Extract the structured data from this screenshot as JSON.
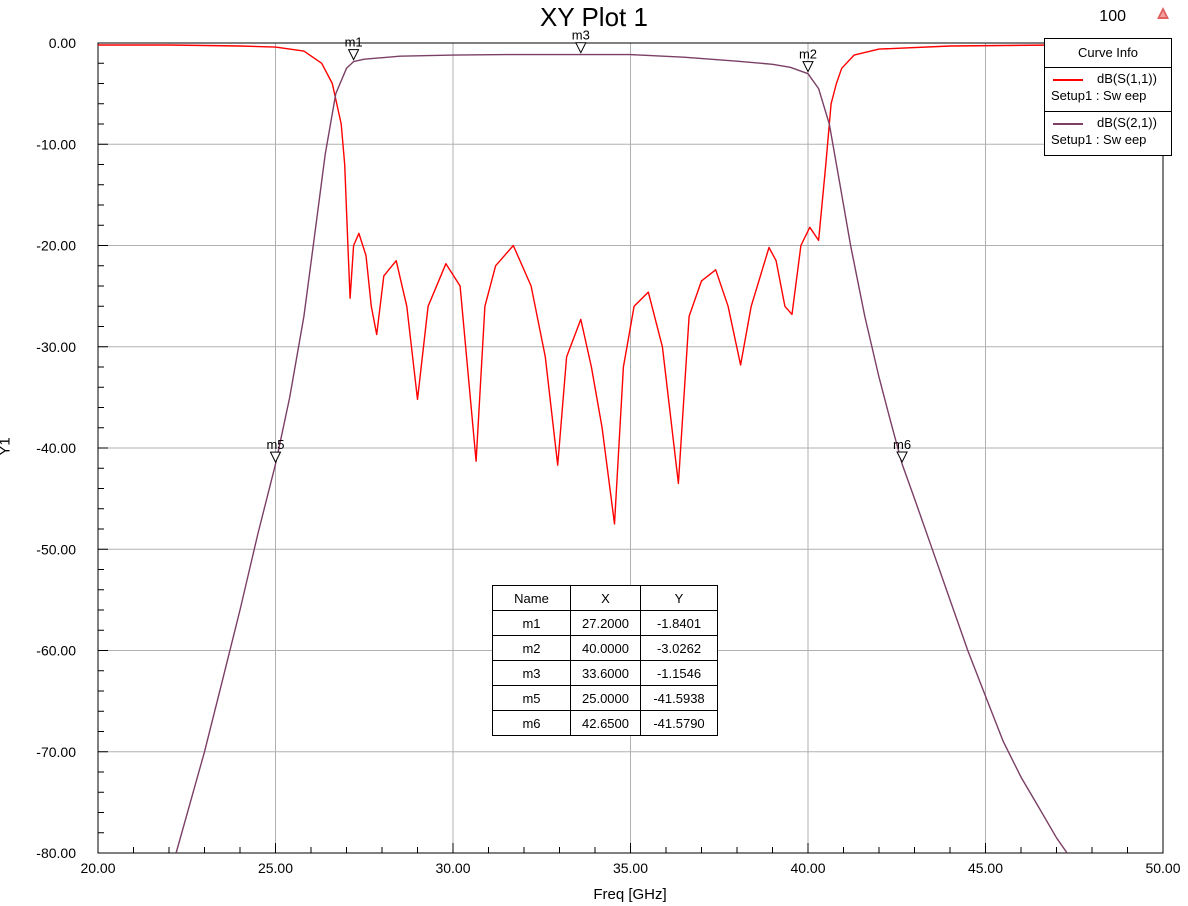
{
  "header": {
    "title": "XY Plot 1",
    "zoom": "100"
  },
  "colors": {
    "s11": "#ff0000",
    "s21": "#7b3f66",
    "grid": "#b0b0b0",
    "background": "#ffffff"
  },
  "legend": {
    "header": "Curve Info",
    "items": [
      {
        "name": "dB(S(1,1))",
        "setup": "Setup1 : Sw eep",
        "color": "#ff0000"
      },
      {
        "name": "dB(S(2,1))",
        "setup": "Setup1 : Sw eep",
        "color": "#7b3f66"
      }
    ]
  },
  "marker_table": {
    "columns": [
      "Name",
      "X",
      "Y"
    ],
    "rows": [
      [
        "m1",
        "27.2000",
        "-1.8401"
      ],
      [
        "m2",
        "40.0000",
        "-3.0262"
      ],
      [
        "m3",
        "33.6000",
        "-1.1546"
      ],
      [
        "m5",
        "25.0000",
        "-41.5938"
      ],
      [
        "m6",
        "42.6500",
        "-41.5790"
      ]
    ]
  },
  "chart_data": {
    "type": "line",
    "title": "XY Plot 1",
    "xlabel": "Freq [GHz]",
    "ylabel": "Y1",
    "xlim": [
      20,
      50
    ],
    "ylim": [
      -80,
      0
    ],
    "grid": true,
    "legend_position": "top-right",
    "x_ticks": [
      "20.00",
      "25.00",
      "30.00",
      "35.00",
      "40.00",
      "45.00",
      "50.00"
    ],
    "y_ticks": [
      "0.00",
      "-10.00",
      "-20.00",
      "-30.00",
      "-40.00",
      "-50.00",
      "-60.00",
      "-70.00",
      "-80.00"
    ],
    "markers": [
      {
        "name": "m1",
        "x": 27.2,
        "y": -1.8401
      },
      {
        "name": "m2",
        "x": 40.0,
        "y": -3.0262
      },
      {
        "name": "m3",
        "x": 33.6,
        "y": -1.1546
      },
      {
        "name": "m5",
        "x": 25.0,
        "y": -41.5938
      },
      {
        "name": "m6",
        "x": 42.65,
        "y": -41.579
      }
    ],
    "series": [
      {
        "name": "dB(S(1,1))",
        "color": "#ff0000",
        "x": [
          20.0,
          22.0,
          24.0,
          25.0,
          25.8,
          26.3,
          26.6,
          26.85,
          26.95,
          27.05,
          27.1,
          27.2,
          27.35,
          27.55,
          27.7,
          27.85,
          28.05,
          28.4,
          28.7,
          29.0,
          29.3,
          29.8,
          30.2,
          30.65,
          30.9,
          31.2,
          31.7,
          32.2,
          32.6,
          32.95,
          33.2,
          33.6,
          33.9,
          34.2,
          34.55,
          34.8,
          35.1,
          35.5,
          35.9,
          36.35,
          36.65,
          37.0,
          37.4,
          37.75,
          38.1,
          38.4,
          38.9,
          39.1,
          39.35,
          39.55,
          39.8,
          40.05,
          40.3,
          40.5,
          40.65,
          40.8,
          40.95,
          41.3,
          42.0,
          44.0,
          47.0,
          50.0
        ],
        "y": [
          -0.2,
          -0.2,
          -0.3,
          -0.4,
          -0.8,
          -2.0,
          -4.0,
          -8.0,
          -12.0,
          -21.0,
          -25.2,
          -20.0,
          -18.8,
          -21.0,
          -26.0,
          -28.8,
          -23.0,
          -21.5,
          -26.0,
          -35.2,
          -26.0,
          -21.8,
          -24.0,
          -41.3,
          -26.0,
          -22.0,
          -20.0,
          -24.0,
          -31.0,
          -41.7,
          -31.0,
          -27.3,
          -32.0,
          -38.0,
          -47.5,
          -32.0,
          -26.0,
          -24.6,
          -30.0,
          -43.5,
          -27.0,
          -23.5,
          -22.4,
          -26.0,
          -31.8,
          -26.0,
          -20.2,
          -21.5,
          -26.0,
          -26.8,
          -20.0,
          -18.2,
          -19.5,
          -12.0,
          -6.0,
          -4.0,
          -2.5,
          -1.2,
          -0.6,
          -0.3,
          -0.2,
          -0.2
        ]
      },
      {
        "name": "dB(S(2,1))",
        "color": "#7b3f66",
        "x": [
          22.2,
          22.6,
          23.0,
          23.5,
          24.0,
          24.5,
          25.0,
          25.4,
          25.8,
          26.1,
          26.4,
          26.7,
          27.0,
          27.2,
          27.5,
          28.5,
          30.0,
          31.5,
          33.6,
          35.0,
          36.5,
          38.0,
          39.0,
          39.5,
          40.0,
          40.3,
          40.6,
          40.9,
          41.2,
          41.6,
          42.0,
          42.3,
          42.65,
          43.0,
          43.5,
          44.0,
          44.5,
          45.0,
          45.5,
          46.0,
          46.5,
          47.0,
          47.3
        ],
        "y": [
          -80.0,
          -75.0,
          -70.0,
          -63.0,
          -56.0,
          -48.5,
          -41.6,
          -35.0,
          -27.0,
          -19.0,
          -11.0,
          -5.0,
          -2.5,
          -1.84,
          -1.6,
          -1.3,
          -1.2,
          -1.15,
          -1.15,
          -1.15,
          -1.4,
          -1.8,
          -2.1,
          -2.4,
          -3.03,
          -4.5,
          -8.0,
          -14.0,
          -20.0,
          -27.0,
          -33.0,
          -37.0,
          -41.58,
          -45.0,
          -50.0,
          -55.0,
          -60.0,
          -64.5,
          -69.0,
          -72.5,
          -75.5,
          -78.5,
          -80.0
        ]
      }
    ]
  },
  "watermark_icon": "warning-triangle-icon"
}
